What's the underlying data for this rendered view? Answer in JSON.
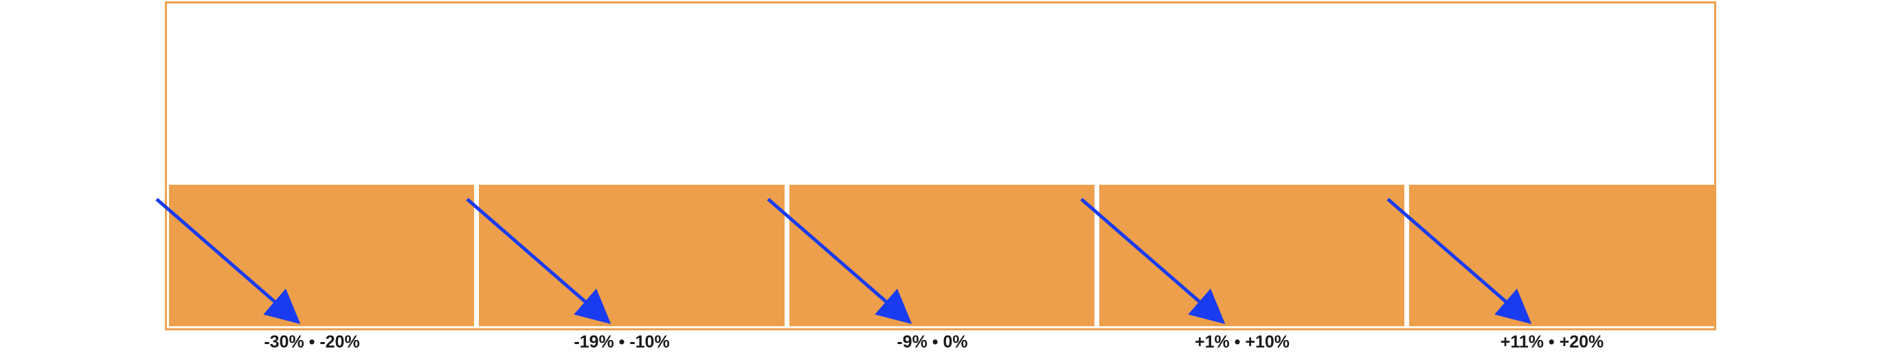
{
  "colors": {
    "accent": "#eea04c",
    "bucket_fill": "#ee9f4b",
    "arrow": "#1a3cf0",
    "label_text": "#1a1a1a"
  },
  "buckets": [
    {
      "label": "-30% • -20%"
    },
    {
      "label": "-19% • -10%"
    },
    {
      "label": "-9% • 0%"
    },
    {
      "label": "+1% • +10%"
    },
    {
      "label": "+11% • +20%"
    }
  ],
  "arrow_icon": "arrow-down-right-icon"
}
